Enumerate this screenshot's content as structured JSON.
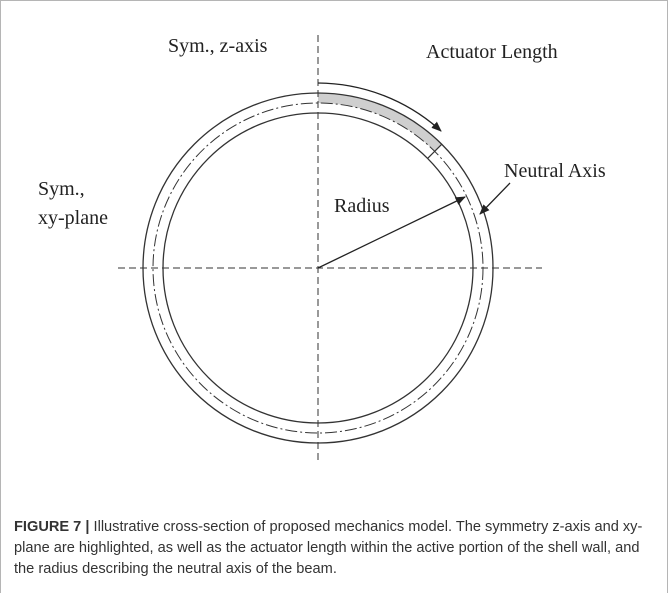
{
  "figure": {
    "labels": {
      "z_axis": "Sym., z-axis",
      "xy_plane_1": "Sym.,",
      "xy_plane_2": "xy-plane",
      "actuator_length": "Actuator Length",
      "neutral_axis": "Neutral Axis",
      "radius": "Radius"
    },
    "caption": {
      "label": "FIGURE 7 |",
      "text": "Illustrative cross-section of proposed mechanics model. The symmetry z-axis and xy-plane are highlighted, as well as the actuator length within the active portion of the shell wall, and the radius describing the neutral axis of the beam."
    }
  }
}
